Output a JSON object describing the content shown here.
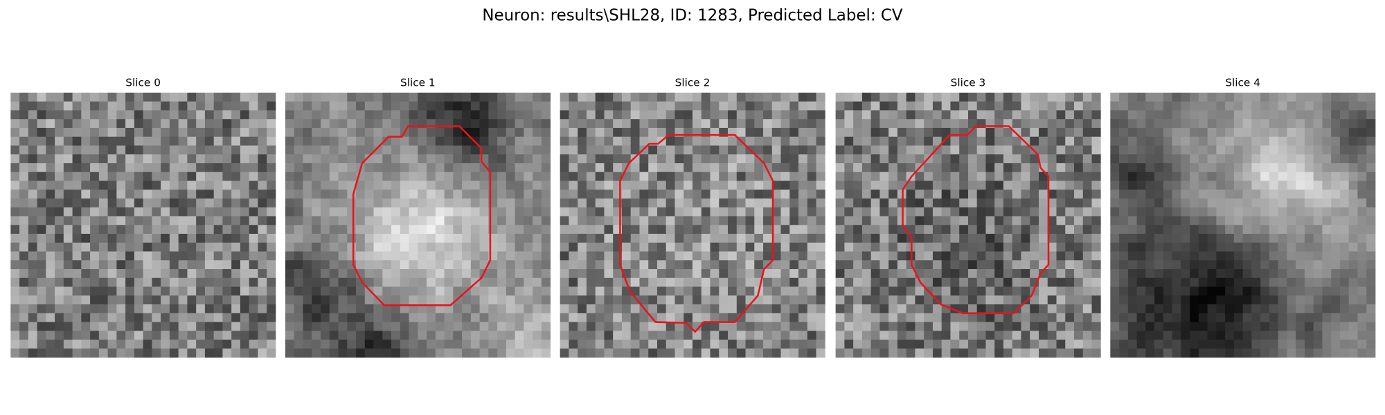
{
  "title": "Neuron: results\\SHL28, ID: 1283, Predicted Label: CV",
  "slices": [
    "Slice 0",
    "Slice 1",
    "Slice 2",
    "Slice 3",
    "Slice 4"
  ]
}
